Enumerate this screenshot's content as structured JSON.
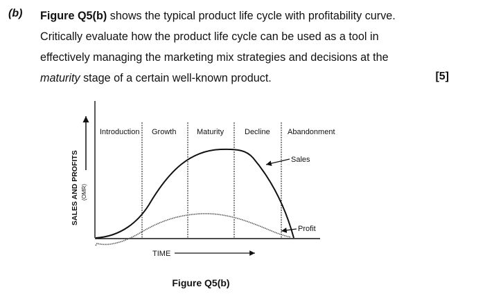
{
  "question": {
    "label": "(b)",
    "line1_bold": "Figure Q5(b)",
    "line1_rest": " shows the typical product life cycle with profitability curve.",
    "line2": "Critically evaluate how the product life cycle can be used as a tool in",
    "line3": "effectively managing the marketing mix strategies and decisions at the",
    "line4_em": "maturity",
    "line4_rest": " stage of a certain well-known product.",
    "marks": "[5]"
  },
  "figure": {
    "stages": [
      "Introduction",
      "Growth",
      "Maturity",
      "Decline",
      "Abandonment"
    ],
    "y_axis_title": "SALES AND PROFITS",
    "y_axis_unit": "(OMR)",
    "x_axis_label": "TIME",
    "curve_labels": {
      "sales": "Sales",
      "profit": "Profit"
    },
    "caption": "Figure Q5(b)"
  }
}
